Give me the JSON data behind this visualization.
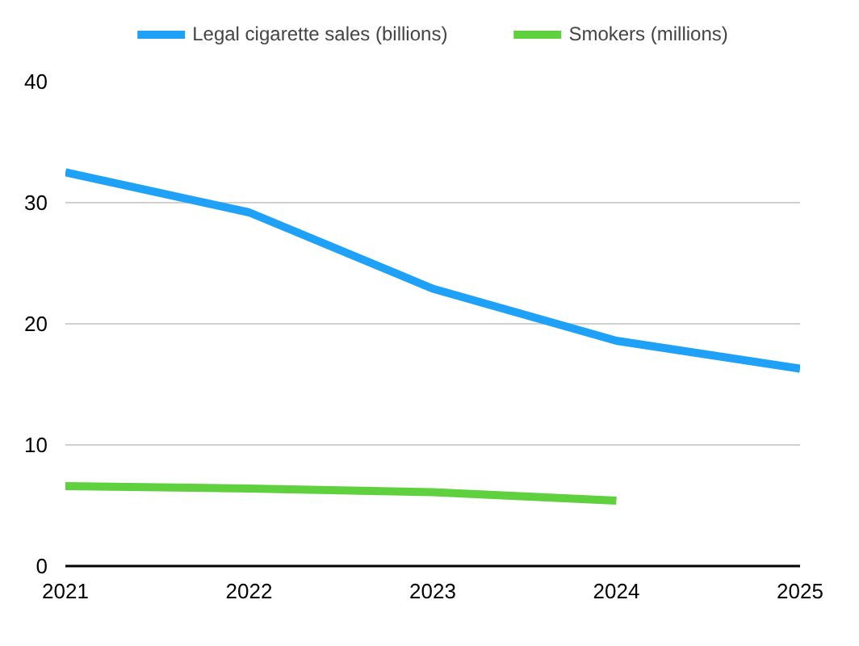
{
  "chart_data": {
    "type": "line",
    "x": [
      2021,
      2022,
      2023,
      2024,
      2025
    ],
    "series": [
      {
        "name": "Legal cigarette sales (billions)",
        "color": "#1ea1f7",
        "values": [
          32.5,
          29.2,
          22.9,
          18.6,
          16.3
        ]
      },
      {
        "name": "Smokers (millions)",
        "color": "#5fd13f",
        "values": [
          6.6,
          6.4,
          6.1,
          5.4,
          null
        ]
      }
    ],
    "xlim": [
      2021,
      2025
    ],
    "xticks": [
      2021,
      2022,
      2023,
      2024,
      2025
    ],
    "ylim": [
      0,
      40
    ],
    "yticks": [
      0,
      10,
      20,
      30,
      40
    ],
    "grid": "y",
    "legend": "top",
    "marker": "none",
    "line_style": "solid"
  }
}
